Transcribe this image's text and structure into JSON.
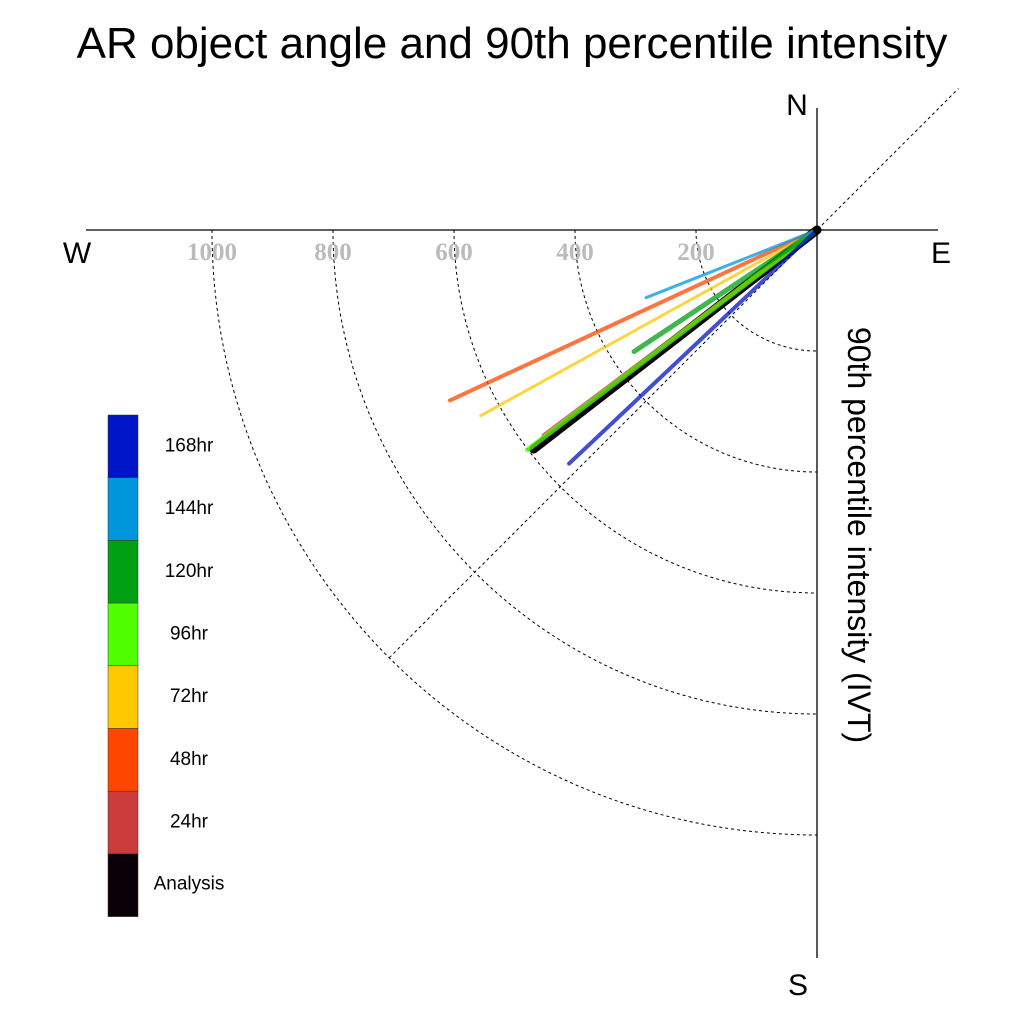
{
  "title": "AR object angle and 90th percentile intensity",
  "compass": {
    "north": "N",
    "south": "S",
    "east": "E",
    "west": "W"
  },
  "y_axis_label": "90th percentile intensity (IVT)",
  "chart_data": {
    "type": "polar-vector",
    "title": "AR object angle and 90th percentile intensity",
    "radial_label": "90th percentile intensity (IVT)",
    "radial_ticks": [
      200,
      400,
      600,
      800,
      1000
    ],
    "radial_tick_labels": [
      "200",
      "400",
      "600",
      "800",
      "1000"
    ],
    "radial_range": [
      0,
      1000
    ],
    "angle_reference": "degrees clockwise from North",
    "reference_line_angle_deg": 225,
    "grid": true,
    "legend_position": "left",
    "series": [
      {
        "name": "168hr",
        "color": "#0014c8",
        "angle_deg": 226.7,
        "intensity": 563,
        "line_width": 4
      },
      {
        "name": "144hr",
        "color": "#0096dc",
        "angle_deg": 248.4,
        "intensity": 304,
        "line_width": 3
      },
      {
        "name": "120hr",
        "color": "#00a014",
        "angle_deg": 236.4,
        "intensity": 363,
        "line_width": 5
      },
      {
        "name": "96hr",
        "color": "#50ff00",
        "angle_deg": 232.8,
        "intensity": 601,
        "line_width": 5
      },
      {
        "name": "72hr",
        "color": "#ffc800",
        "angle_deg": 241.1,
        "intensity": 635,
        "line_width": 3
      },
      {
        "name": "48hr",
        "color": "#ff4600",
        "angle_deg": 245.1,
        "intensity": 669,
        "line_width": 4
      },
      {
        "name": "24hr",
        "color": "#cc3c3c",
        "angle_deg": 233.1,
        "intensity": 565,
        "line_width": 4
      },
      {
        "name": "Analysis",
        "color": "#0a0008",
        "angle_deg": 232.3,
        "intensity": 592,
        "line_width": 9
      }
    ]
  }
}
